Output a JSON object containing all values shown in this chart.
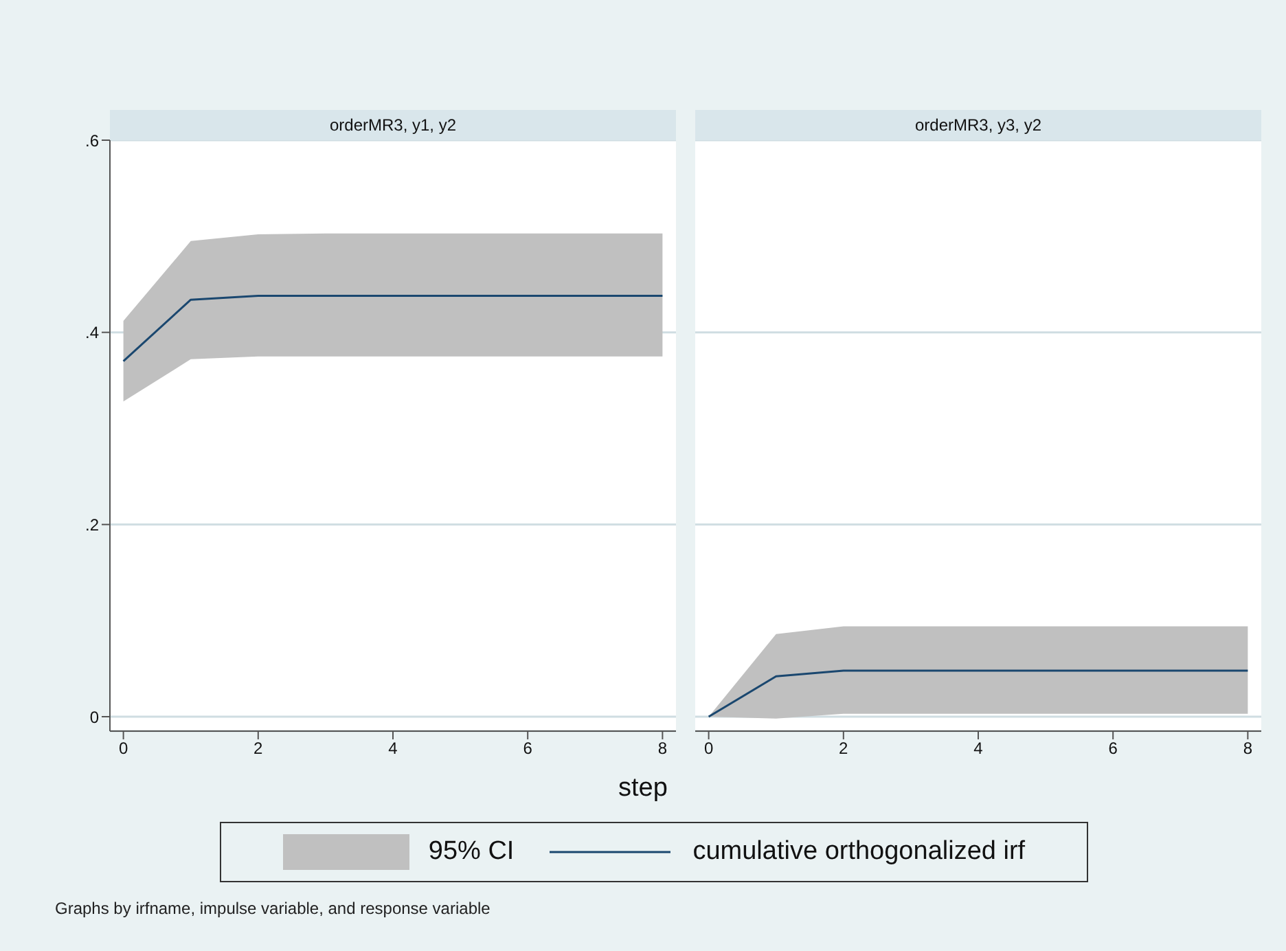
{
  "chart_data": [
    {
      "type": "line",
      "title": "orderMR3, y1, y2",
      "xlabel": "step",
      "x": [
        0,
        1,
        2,
        3,
        4,
        5,
        6,
        7,
        8
      ],
      "series": [
        {
          "name": "cumulative orthogonalized irf",
          "color": "#1a476f",
          "values": [
            0.37,
            0.434,
            0.438,
            0.438,
            0.438,
            0.438,
            0.438,
            0.438,
            0.438
          ],
          "lower": [
            0.328,
            0.372,
            0.375,
            0.375,
            0.375,
            0.375,
            0.375,
            0.375,
            0.375
          ],
          "upper": [
            0.412,
            0.495,
            0.502,
            0.503,
            0.503,
            0.503,
            0.503,
            0.503,
            0.503
          ]
        }
      ],
      "xlim": [
        -0.2,
        8.2
      ],
      "xticks": [
        0,
        2,
        4,
        6,
        8
      ],
      "ylim": [
        -0.015,
        0.6
      ],
      "yticks": [
        0,
        {
          "value": 0.2,
          "label": ".2"
        },
        {
          "value": 0.4,
          "label": ".4"
        },
        {
          "value": 0.6,
          "label": ".6"
        }
      ],
      "grid": "y",
      "legend": "bottom",
      "line_style": "solid",
      "annotations": [
        "95% CI",
        "Graphs by irfname, impulse variable, and response variable"
      ]
    },
    {
      "type": "line",
      "title": "orderMR3, y3, y2",
      "x": [
        0,
        1,
        2,
        3,
        4,
        5,
        6,
        7,
        8
      ],
      "series": [
        {
          "color": "#1a476f",
          "values": [
            0,
            0.042,
            0.048,
            0.048,
            0.048,
            0.048,
            0.048,
            0.048,
            0.048
          ],
          "lower": [
            0,
            -0.002,
            0.003,
            0.003,
            0.003,
            0.003,
            0.003,
            0.003,
            0.003
          ],
          "upper": [
            0,
            0.086,
            0.094,
            0.094,
            0.094,
            0.094,
            0.094,
            0.094,
            0.094
          ]
        }
      ],
      "xlim": [
        -0.2,
        8.2
      ],
      "xticks": [
        0,
        2,
        4,
        6,
        8
      ],
      "ylim": [
        -0.015,
        0.6
      ],
      "yticks": [
        0,
        0.2,
        0.4,
        0.6
      ],
      "grid": "y",
      "line_style": "solid",
      "tick_labels": "x"
    }
  ]
}
